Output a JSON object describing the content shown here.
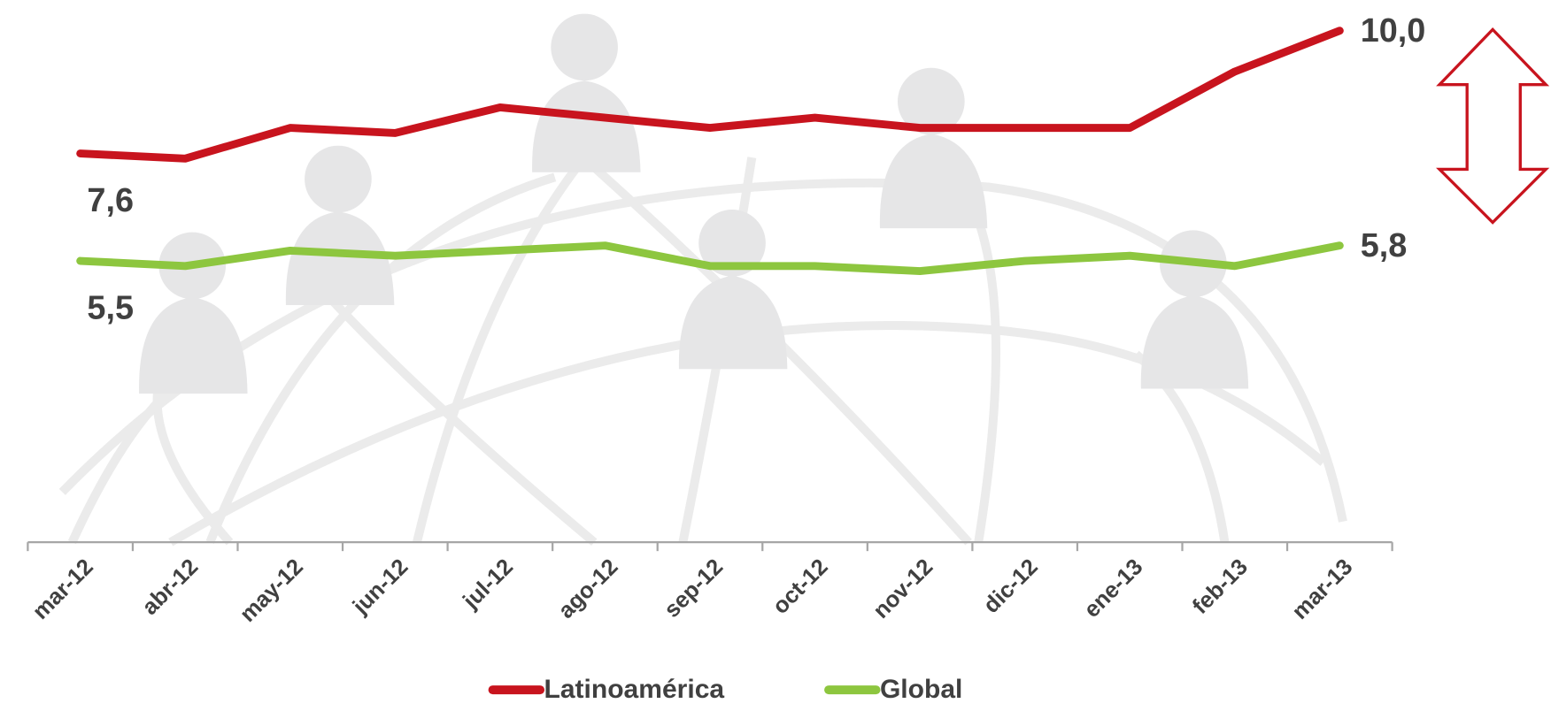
{
  "chart_data": {
    "type": "line",
    "categories": [
      "mar-12",
      "abr-12",
      "may-12",
      "jun-12",
      "jul-12",
      "ago-12",
      "sep-12",
      "oct-12",
      "nov-12",
      "dic-12",
      "ene-13",
      "feb-13",
      "mar-13"
    ],
    "series": [
      {
        "name": "Latinoamérica",
        "color": "#c8141e",
        "values": [
          7.6,
          7.5,
          8.1,
          8.0,
          8.5,
          8.3,
          8.1,
          8.3,
          8.1,
          8.1,
          8.1,
          9.2,
          10.0
        ],
        "value_labels": [
          "7,6",
          null,
          null,
          null,
          null,
          null,
          null,
          null,
          null,
          null,
          null,
          null,
          "10,0"
        ]
      },
      {
        "name": "Global",
        "color": "#8dc63f",
        "values": [
          5.5,
          5.4,
          5.7,
          5.6,
          5.7,
          5.8,
          5.4,
          5.4,
          5.3,
          5.5,
          5.6,
          5.4,
          5.8
        ],
        "value_labels": [
          "5,5",
          null,
          null,
          null,
          null,
          null,
          null,
          null,
          null,
          null,
          null,
          null,
          "5,8"
        ]
      }
    ],
    "ylim": [
      0,
      10.6
    ],
    "legend": "bottom"
  }
}
